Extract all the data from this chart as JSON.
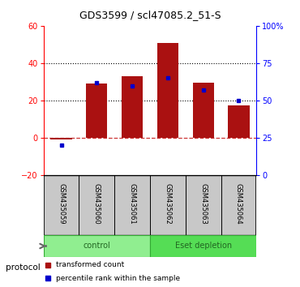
{
  "title": "GDS3599 / scl47085.2_51-S",
  "samples": [
    "GSM435059",
    "GSM435060",
    "GSM435061",
    "GSM435062",
    "GSM435063",
    "GSM435064"
  ],
  "transformed_count": [
    -0.8,
    29.0,
    33.0,
    51.0,
    29.5,
    17.5
  ],
  "percentile_rank": [
    20.0,
    62.0,
    60.0,
    65.0,
    57.0,
    50.0
  ],
  "groups": [
    {
      "label": "control",
      "indices": [
        0,
        1,
        2
      ],
      "color": "#90EE90",
      "edge_color": "#33AA33"
    },
    {
      "label": "Eset depletion",
      "indices": [
        3,
        4,
        5
      ],
      "color": "#55DD55",
      "edge_color": "#33AA33"
    }
  ],
  "bar_color": "#AA1111",
  "dot_color": "#0000CC",
  "ylim_left": [
    -20,
    60
  ],
  "ylim_right": [
    0,
    100
  ],
  "yticks_left": [
    -20,
    0,
    20,
    40,
    60
  ],
  "yticks_right": [
    0,
    25,
    50,
    75,
    100
  ],
  "ytick_labels_right": [
    "0",
    "25",
    "50",
    "75",
    "100%"
  ],
  "hlines": [
    20,
    40
  ],
  "zero_line_color": "#CC3333",
  "bg_color": "#FFFFFF",
  "xtick_bg_color": "#C8C8C8",
  "protocol_label": "protocol",
  "legend_items": [
    {
      "label": "transformed count",
      "color": "#AA1111"
    },
    {
      "label": "percentile rank within the sample",
      "color": "#0000CC"
    }
  ]
}
